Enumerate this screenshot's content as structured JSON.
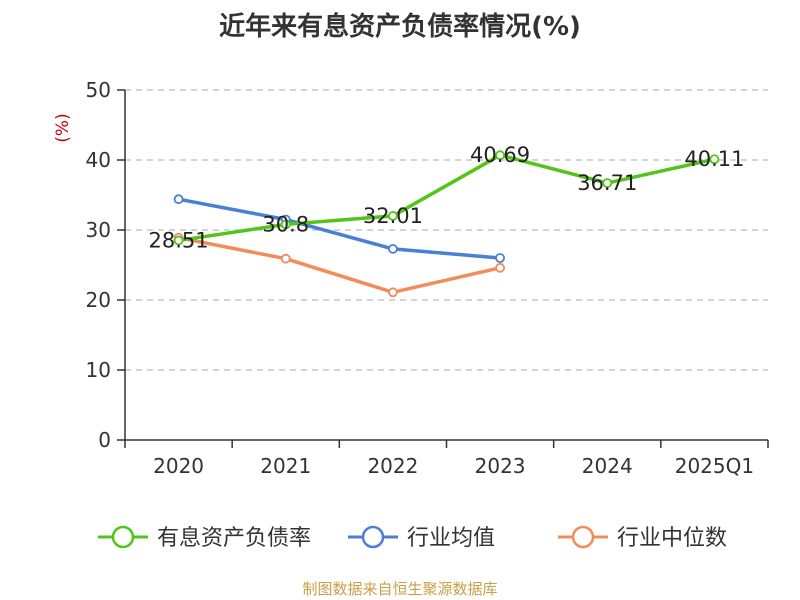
{
  "title": "近年来有息资产负债率情况(%)",
  "source": "制图数据来自恒生聚源数据库",
  "chart_data": {
    "type": "line",
    "title": "近年来有息资产负债率情况(%)",
    "ylabel": "(%)",
    "categories": [
      "2020",
      "2021",
      "2022",
      "2023",
      "2024",
      "2025Q1"
    ],
    "yticks": [
      0,
      10,
      20,
      30,
      40,
      50
    ],
    "ylim": [
      0,
      50
    ],
    "grid": true,
    "legend_position": "bottom",
    "series": [
      {
        "name": "有息资产负债率",
        "color": "#52c41a",
        "values": [
          28.51,
          30.8,
          32.01,
          40.69,
          36.71,
          40.11
        ],
        "labels": [
          "28.51",
          "30.8",
          "32.01",
          "40.69",
          "36.71",
          "40.11"
        ]
      },
      {
        "name": "行业均值",
        "color": "#4a7fd6",
        "values": [
          34.4,
          31.5,
          27.3,
          26.0,
          null,
          null
        ]
      },
      {
        "name": "行业中位数",
        "color": "#f28c5a",
        "values": [
          28.9,
          25.9,
          21.1,
          24.6,
          null,
          null
        ]
      }
    ],
    "ylabel_color": "#cc0000"
  }
}
